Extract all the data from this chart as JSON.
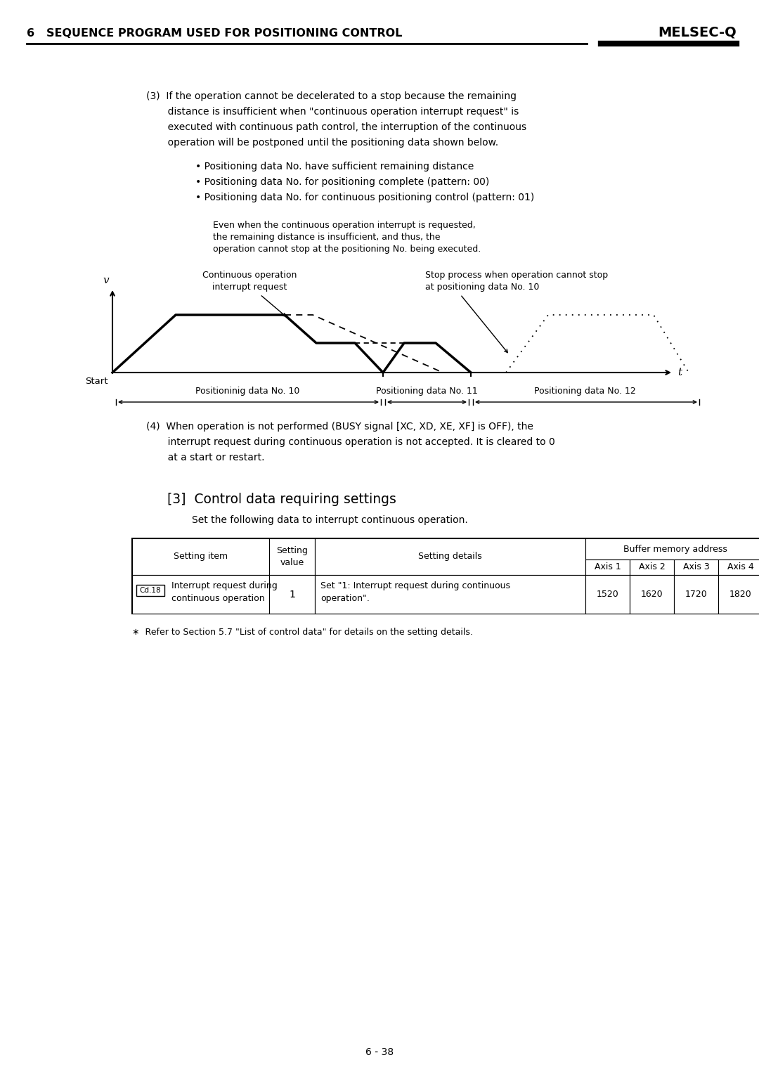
{
  "page_bg": "#ffffff",
  "header_text": "6   SEQUENCE PROGRAM USED FOR POSITIONING CONTROL",
  "header_right": "MELSEC-Q",
  "bullet1": "• Positioning data No. have sufficient remaining distance",
  "bullet2": "• Positioning data No. for positioning complete (pattern: 00)",
  "bullet3": "• Positioning data No. for continuous positioning control (pattern: 01)",
  "section3_title": "[3]  Control data requiring settings",
  "section3_subtitle": "Set the following data to interrupt continuous operation.",
  "table_sub_headers": [
    "Axis 1",
    "Axis 2",
    "Axis 3",
    "Axis 4"
  ],
  "table_row": {
    "code": "Cd.18",
    "item": "Interrupt request during\ncontinuous operation",
    "value": "1",
    "details": "Set \"1: Interrupt request during continuous\noperation\".",
    "addr": [
      "1520",
      "1620",
      "1720",
      "1820"
    ]
  },
  "footnote": "∗  Refer to Section 5.7 \"List of control data\" for details on the setting details.",
  "page_number": "6 - 38"
}
